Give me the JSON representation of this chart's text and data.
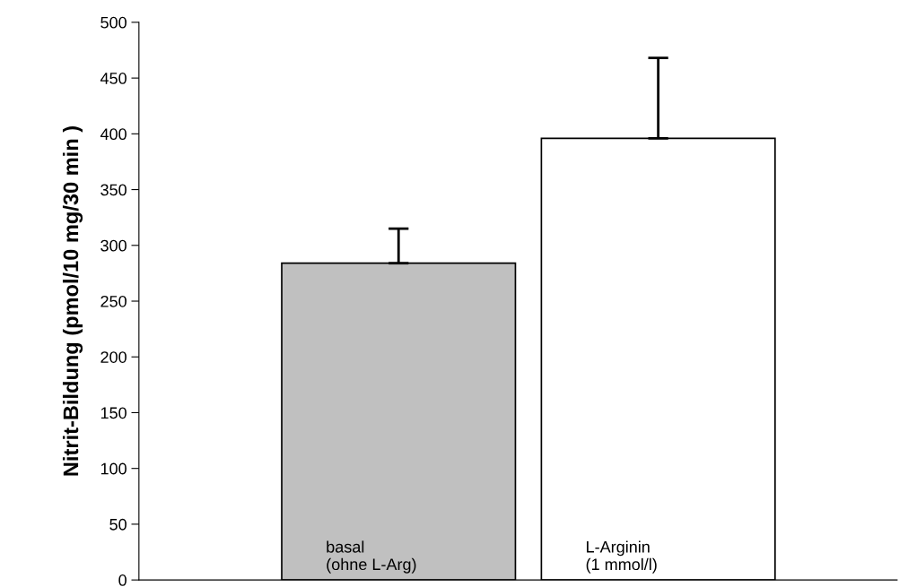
{
  "chart_data": {
    "type": "bar",
    "ylabel": "Nitrit-Bildung (pmol/10 mg/30 min )",
    "categories": [
      "basal\n(ohne L-Arg)",
      "L-Arginin\n(1 mmol/l)"
    ],
    "values": [
      284,
      396
    ],
    "colors": [
      "#c0c0c0",
      "#ffffff"
    ],
    "errors": [
      [
        284,
        315
      ],
      [
        396,
        468
      ]
    ],
    "ylim": [
      0,
      500
    ],
    "yticks": [
      0,
      50,
      100,
      150,
      200,
      250,
      300,
      350,
      400,
      450,
      500
    ],
    "grid": false,
    "legend": false
  }
}
